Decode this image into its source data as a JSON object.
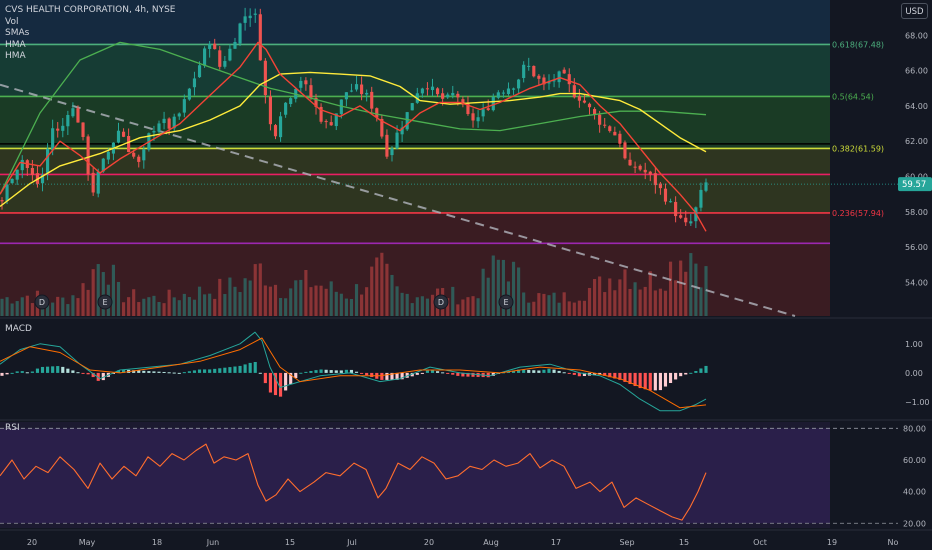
{
  "header": {
    "symbol_title": "CVS HEALTH CORPORATION, 4h, NYSE",
    "indicators": [
      "Vol",
      "SMAs",
      "HMA",
      "HMA"
    ],
    "currency_button": "USD"
  },
  "chart_data": [
    {
      "type": "candlestick",
      "title": "CVS HEALTH CORPORATION, 4h, NYSE",
      "y_axis": {
        "ticks": [
          54.0,
          56.0,
          58.0,
          60.0,
          62.0,
          64.0,
          66.0,
          68.0
        ],
        "range": [
          52.1,
          70.0
        ],
        "position": "right"
      },
      "x_axis": {
        "ticks": [
          "20",
          "May",
          "18",
          "Jun",
          "15",
          "Jul",
          "20",
          "Aug",
          "17",
          "Sep",
          "15",
          "Oct",
          "19",
          "No"
        ]
      },
      "last_price": 59.57,
      "colors": {
        "up": "#26a69a",
        "down": "#ef5350",
        "sma_slow": "#4caf50",
        "sma_fast": "#ffeb3b",
        "hma": "#f44336"
      },
      "close_path": [
        [
          0,
          58.3
        ],
        [
          10,
          59.9
        ],
        [
          22,
          61.0
        ],
        [
          30,
          60.2
        ],
        [
          40,
          59.4
        ],
        [
          52,
          62.8
        ],
        [
          60,
          62.4
        ],
        [
          70,
          64.1
        ],
        [
          80,
          63.0
        ],
        [
          92,
          59.0
        ],
        [
          100,
          60.4
        ],
        [
          110,
          61.6
        ],
        [
          120,
          62.8
        ],
        [
          130,
          61.4
        ],
        [
          140,
          60.6
        ],
        [
          150,
          62.5
        ],
        [
          160,
          63.2
        ],
        [
          170,
          62.8
        ],
        [
          180,
          63.6
        ],
        [
          190,
          65.0
        ],
        [
          200,
          66.4
        ],
        [
          210,
          67.8
        ],
        [
          220,
          66.2
        ],
        [
          230,
          67.2
        ],
        [
          240,
          68.6
        ],
        [
          248,
          69.4
        ],
        [
          256,
          69.0
        ],
        [
          262,
          66.0
        ],
        [
          268,
          63.4
        ],
        [
          274,
          62.2
        ],
        [
          280,
          63.6
        ],
        [
          290,
          64.6
        ],
        [
          300,
          65.6
        ],
        [
          310,
          64.6
        ],
        [
          320,
          63.4
        ],
        [
          328,
          62.8
        ],
        [
          336,
          63.6
        ],
        [
          346,
          64.8
        ],
        [
          356,
          65.0
        ],
        [
          366,
          64.6
        ],
        [
          376,
          63.6
        ],
        [
          382,
          62.3
        ],
        [
          388,
          61.2
        ],
        [
          396,
          62.3
        ],
        [
          406,
          63.4
        ],
        [
          416,
          64.8
        ],
        [
          426,
          65.3
        ],
        [
          436,
          64.6
        ],
        [
          446,
          64.3
        ],
        [
          456,
          64.8
        ],
        [
          466,
          63.4
        ],
        [
          476,
          63.2
        ],
        [
          486,
          63.8
        ],
        [
          496,
          64.8
        ],
        [
          506,
          65.0
        ],
        [
          516,
          65.3
        ],
        [
          526,
          66.4
        ],
        [
          534,
          65.8
        ],
        [
          544,
          65.1
        ],
        [
          554,
          65.5
        ],
        [
          562,
          65.8
        ],
        [
          572,
          64.8
        ],
        [
          582,
          64.4
        ],
        [
          592,
          63.6
        ],
        [
          602,
          63.0
        ],
        [
          612,
          62.6
        ],
        [
          620,
          62.0
        ],
        [
          628,
          60.3
        ],
        [
          636,
          60.6
        ],
        [
          646,
          60.2
        ],
        [
          656,
          59.6
        ],
        [
          666,
          58.8
        ],
        [
          674,
          58.1
        ],
        [
          682,
          57.4
        ],
        [
          688,
          57.1
        ],
        [
          694,
          57.8
        ],
        [
          700,
          58.9
        ],
        [
          706,
          59.6
        ]
      ],
      "volume_path": [
        [
          0,
          0.25
        ],
        [
          30,
          0.3
        ],
        [
          60,
          0.22
        ],
        [
          80,
          0.35
        ],
        [
          104,
          0.9
        ],
        [
          120,
          0.3
        ],
        [
          160,
          0.25
        ],
        [
          200,
          0.35
        ],
        [
          240,
          0.45
        ],
        [
          262,
          0.7
        ],
        [
          280,
          0.4
        ],
        [
          310,
          0.5
        ],
        [
          350,
          0.3
        ],
        [
          380,
          0.7
        ],
        [
          400,
          0.3
        ],
        [
          440,
          0.35
        ],
        [
          470,
          0.25
        ],
        [
          503,
          0.85
        ],
        [
          530,
          0.3
        ],
        [
          560,
          0.25
        ],
        [
          600,
          0.45
        ],
        [
          624,
          0.7
        ],
        [
          640,
          0.5
        ],
        [
          660,
          0.55
        ],
        [
          688,
          1.0
        ],
        [
          706,
          0.6
        ]
      ],
      "sma_slow": [
        [
          0,
          59.0
        ],
        [
          40,
          63.6
        ],
        [
          80,
          66.6
        ],
        [
          120,
          67.6
        ],
        [
          160,
          67.2
        ],
        [
          200,
          66.4
        ],
        [
          240,
          65.6
        ],
        [
          270,
          65.0
        ],
        [
          300,
          64.6
        ],
        [
          340,
          64.0
        ],
        [
          380,
          63.5
        ],
        [
          420,
          63.1
        ],
        [
          460,
          62.7
        ],
        [
          500,
          62.6
        ],
        [
          540,
          63.0
        ],
        [
          580,
          63.4
        ],
        [
          620,
          63.7
        ],
        [
          660,
          63.7
        ],
        [
          706,
          63.5
        ]
      ],
      "sma_fast": [
        [
          0,
          58.3
        ],
        [
          30,
          59.6
        ],
        [
          60,
          60.6
        ],
        [
          100,
          61.3
        ],
        [
          140,
          62.2
        ],
        [
          180,
          62.6
        ],
        [
          210,
          63.2
        ],
        [
          240,
          64.0
        ],
        [
          260,
          65.2
        ],
        [
          280,
          65.8
        ],
        [
          310,
          65.9
        ],
        [
          340,
          65.8
        ],
        [
          370,
          65.7
        ],
        [
          400,
          65.1
        ],
        [
          420,
          64.3
        ],
        [
          450,
          64.1
        ],
        [
          480,
          64.2
        ],
        [
          510,
          64.3
        ],
        [
          540,
          64.5
        ],
        [
          560,
          64.7
        ],
        [
          580,
          64.7
        ],
        [
          600,
          64.5
        ],
        [
          620,
          64.3
        ],
        [
          640,
          63.8
        ],
        [
          660,
          63.0
        ],
        [
          680,
          62.2
        ],
        [
          706,
          61.4
        ]
      ],
      "hma": [
        [
          0,
          59.0
        ],
        [
          20,
          60.8
        ],
        [
          40,
          60.6
        ],
        [
          60,
          62.0
        ],
        [
          80,
          61.2
        ],
        [
          100,
          60.2
        ],
        [
          120,
          61.0
        ],
        [
          150,
          62.0
        ],
        [
          180,
          63.0
        ],
        [
          210,
          64.6
        ],
        [
          240,
          66.2
        ],
        [
          258,
          67.6
        ],
        [
          266,
          67.2
        ],
        [
          280,
          65.8
        ],
        [
          300,
          64.8
        ],
        [
          320,
          63.8
        ],
        [
          340,
          63.4
        ],
        [
          360,
          64.0
        ],
        [
          380,
          63.2
        ],
        [
          400,
          62.6
        ],
        [
          420,
          63.6
        ],
        [
          440,
          64.2
        ],
        [
          460,
          64.2
        ],
        [
          480,
          63.8
        ],
        [
          500,
          64.2
        ],
        [
          530,
          65.0
        ],
        [
          560,
          65.6
        ],
        [
          580,
          65.2
        ],
        [
          600,
          64.0
        ],
        [
          620,
          63.0
        ],
        [
          640,
          61.6
        ],
        [
          660,
          60.2
        ],
        [
          680,
          59.0
        ],
        [
          695,
          58.0
        ],
        [
          706,
          56.9
        ]
      ],
      "horizontal_levels": [
        {
          "price": 67.48,
          "label": "0.618(67.48)",
          "color": "#4caf7d"
        },
        {
          "price": 64.54,
          "label": "0.5(64.54)",
          "color": "#4caf50"
        },
        {
          "price": 61.85,
          "label": "",
          "color": "#000000"
        },
        {
          "price": 61.59,
          "label": "0.382(61.59)",
          "color": "#cddc39"
        },
        {
          "price": 60.12,
          "label": "",
          "color": "#e91e63"
        },
        {
          "price": 57.94,
          "label": "0.236(57.94)",
          "color": "#f23645"
        },
        {
          "price": 56.22,
          "label": "",
          "color": "#9c27b0"
        }
      ],
      "trendline": {
        "from": [
          0,
          65.2
        ],
        "to": [
          795,
          52.1
        ],
        "style": "dashed",
        "color": "#b2b5be"
      },
      "event_markers": [
        {
          "x": 42,
          "label": "D"
        },
        {
          "x": 105,
          "label": "E"
        },
        {
          "x": 441,
          "label": "D"
        },
        {
          "x": 506,
          "label": "E"
        }
      ]
    },
    {
      "type": "line",
      "title": "MACD",
      "y_axis": {
        "ticks": [
          1.0,
          0.0,
          -1.0
        ],
        "labels": [
          "1.00",
          "0.00",
          "−1.00"
        ],
        "range": [
          -1.55,
          1.75
        ]
      },
      "macd": [
        [
          0,
          0.3
        ],
        [
          20,
          0.8
        ],
        [
          40,
          1.0
        ],
        [
          60,
          0.9
        ],
        [
          80,
          0.3
        ],
        [
          100,
          -0.2
        ],
        [
          120,
          0.1
        ],
        [
          150,
          0.2
        ],
        [
          180,
          0.3
        ],
        [
          210,
          0.6
        ],
        [
          240,
          1.0
        ],
        [
          255,
          1.4
        ],
        [
          262,
          1.1
        ],
        [
          270,
          0.2
        ],
        [
          280,
          -0.5
        ],
        [
          300,
          -0.3
        ],
        [
          320,
          -0.1
        ],
        [
          350,
          0.0
        ],
        [
          380,
          -0.3
        ],
        [
          400,
          -0.2
        ],
        [
          430,
          0.2
        ],
        [
          460,
          0.0
        ],
        [
          490,
          -0.1
        ],
        [
          520,
          0.2
        ],
        [
          550,
          0.3
        ],
        [
          580,
          0.0
        ],
        [
          600,
          -0.1
        ],
        [
          620,
          -0.4
        ],
        [
          640,
          -0.9
        ],
        [
          660,
          -1.3
        ],
        [
          680,
          -1.3
        ],
        [
          695,
          -1.1
        ],
        [
          706,
          -0.9
        ]
      ],
      "signal": [
        [
          0,
          0.4
        ],
        [
          30,
          0.9
        ],
        [
          60,
          0.7
        ],
        [
          90,
          0.1
        ],
        [
          120,
          0.0
        ],
        [
          160,
          0.2
        ],
        [
          200,
          0.4
        ],
        [
          240,
          0.8
        ],
        [
          262,
          1.2
        ],
        [
          280,
          0.2
        ],
        [
          300,
          -0.3
        ],
        [
          340,
          -0.1
        ],
        [
          380,
          -0.1
        ],
        [
          420,
          0.1
        ],
        [
          460,
          0.1
        ],
        [
          500,
          0.0
        ],
        [
          540,
          0.2
        ],
        [
          580,
          0.1
        ],
        [
          620,
          -0.2
        ],
        [
          650,
          -0.6
        ],
        [
          680,
          -1.2
        ],
        [
          706,
          -1.1
        ]
      ]
    },
    {
      "type": "line",
      "title": "RSI",
      "y_axis": {
        "ticks": [
          80.0,
          60.0,
          40.0,
          20.0
        ],
        "labels": [
          "80.00",
          "60.00",
          "40.00",
          "20.00"
        ],
        "range": [
          17.0,
          84.0
        ]
      },
      "bands": [
        80,
        20
      ],
      "values": [
        [
          0,
          50
        ],
        [
          12,
          60
        ],
        [
          24,
          48
        ],
        [
          36,
          56
        ],
        [
          48,
          52
        ],
        [
          60,
          62
        ],
        [
          74,
          54
        ],
        [
          88,
          42
        ],
        [
          100,
          58
        ],
        [
          112,
          48
        ],
        [
          124,
          56
        ],
        [
          136,
          50
        ],
        [
          148,
          62
        ],
        [
          160,
          56
        ],
        [
          172,
          64
        ],
        [
          184,
          60
        ],
        [
          196,
          66
        ],
        [
          206,
          70
        ],
        [
          214,
          58
        ],
        [
          224,
          62
        ],
        [
          236,
          60
        ],
        [
          248,
          64
        ],
        [
          258,
          44
        ],
        [
          266,
          34
        ],
        [
          276,
          38
        ],
        [
          288,
          48
        ],
        [
          300,
          40
        ],
        [
          314,
          46
        ],
        [
          326,
          52
        ],
        [
          340,
          50
        ],
        [
          354,
          58
        ],
        [
          366,
          54
        ],
        [
          378,
          36
        ],
        [
          386,
          42
        ],
        [
          398,
          58
        ],
        [
          410,
          54
        ],
        [
          422,
          62
        ],
        [
          434,
          58
        ],
        [
          446,
          48
        ],
        [
          458,
          50
        ],
        [
          470,
          56
        ],
        [
          482,
          54
        ],
        [
          494,
          60
        ],
        [
          506,
          56
        ],
        [
          518,
          58
        ],
        [
          530,
          64
        ],
        [
          540,
          55
        ],
        [
          552,
          60
        ],
        [
          564,
          56
        ],
        [
          576,
          42
        ],
        [
          590,
          46
        ],
        [
          600,
          40
        ],
        [
          612,
          46
        ],
        [
          624,
          30
        ],
        [
          636,
          36
        ],
        [
          648,
          32
        ],
        [
          660,
          28
        ],
        [
          672,
          24
        ],
        [
          682,
          22
        ],
        [
          690,
          30
        ],
        [
          698,
          40
        ],
        [
          706,
          52
        ]
      ]
    }
  ]
}
